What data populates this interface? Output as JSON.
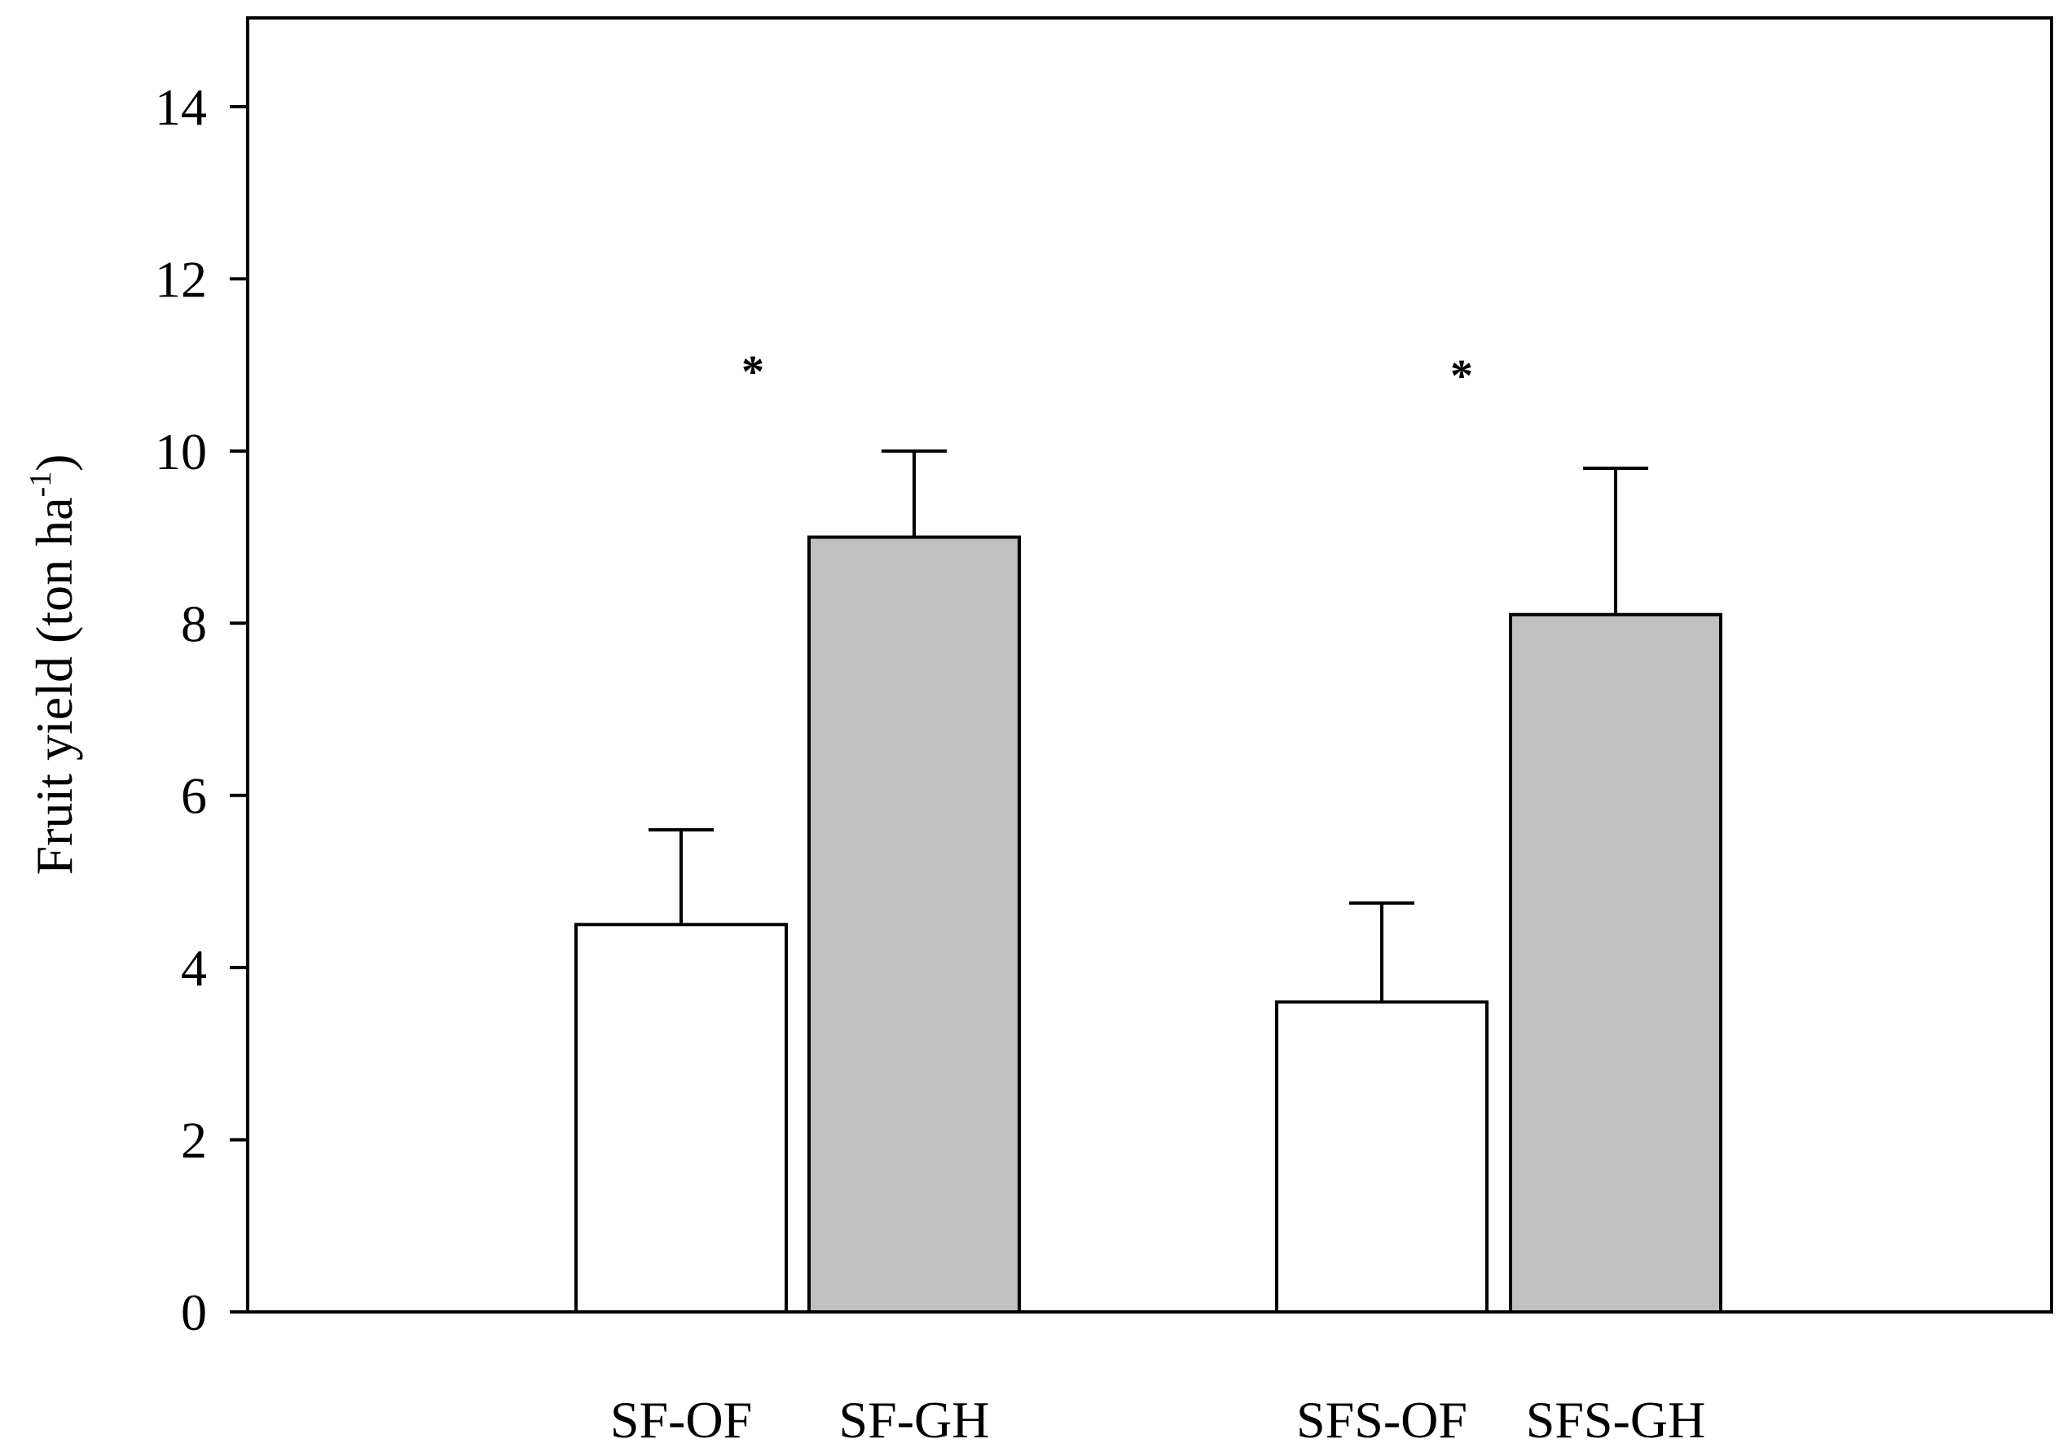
{
  "chart_data": {
    "type": "bar",
    "title": "",
    "xlabel": "",
    "ylabel": {
      "main": "Fruit yield (ton ha",
      "superscript": "-1",
      "close": ")"
    },
    "ylim": [
      0,
      15
    ],
    "yticks": [
      "0",
      "2",
      "4",
      "6",
      "8",
      "10",
      "12",
      "14"
    ],
    "categories": [
      "SF-OF",
      "SF-GH",
      "SFS-OF",
      "SFS-GH"
    ],
    "groups": [
      {
        "bars": [
          "SF-OF",
          "SF-GH"
        ],
        "significance": "*"
      },
      {
        "bars": [
          "SFS-OF",
          "SFS-GH"
        ],
        "significance": "*"
      }
    ],
    "series": [
      {
        "name": "SF-OF",
        "value": 4.5,
        "error": 1.1,
        "color": "#ffffff"
      },
      {
        "name": "SF-GH",
        "value": 9.0,
        "error": 1.0,
        "color": "#c0c0c0"
      },
      {
        "name": "SFS-OF",
        "value": 3.6,
        "error": 1.15,
        "color": "#ffffff"
      },
      {
        "name": "SFS-GH",
        "value": 8.1,
        "error": 1.7,
        "color": "#c0c0c0"
      }
    ]
  }
}
